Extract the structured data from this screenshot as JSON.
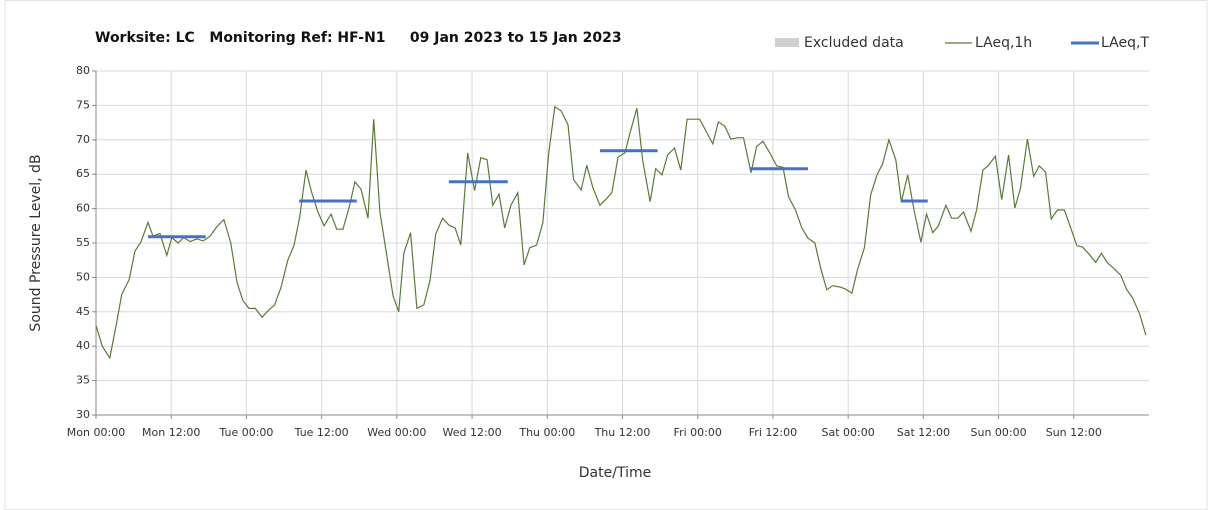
{
  "chart_data": {
    "type": "line",
    "title": "Worksite: LC   Monitoring Ref: HF-N1     09 Jan 2023 to 15 Jan 2023",
    "x_label": "Date/Time",
    "y_label": "Sound Pressure Level, dB",
    "excluded": {
      "name": "Excluded data",
      "color": "#d0d0d0"
    },
    "xlim": [
      0,
      168
    ],
    "xticks": [
      {
        "value": 0,
        "label": "Mon 00:00"
      },
      {
        "value": 12,
        "label": "Mon 12:00"
      },
      {
        "value": 24,
        "label": "Tue 00:00"
      },
      {
        "value": 36,
        "label": "Tue 12:00"
      },
      {
        "value": 48,
        "label": "Wed 00:00"
      },
      {
        "value": 60,
        "label": "Wed 12:00"
      },
      {
        "value": 72,
        "label": "Thu 00:00"
      },
      {
        "value": 84,
        "label": "Thu 12:00"
      },
      {
        "value": 96,
        "label": "Fri 00:00"
      },
      {
        "value": 108,
        "label": "Fri 12:00"
      },
      {
        "value": 120,
        "label": "Sat 00:00"
      },
      {
        "value": 132,
        "label": "Sat 12:00"
      },
      {
        "value": 144,
        "label": "Sun 00:00"
      },
      {
        "value": 156,
        "label": "Sun 12:00"
      }
    ],
    "ylim": [
      30,
      80
    ],
    "yticks": [
      30,
      35,
      40,
      45,
      50,
      55,
      60,
      65,
      70,
      75,
      80
    ],
    "grid": true,
    "series": [
      {
        "name": "LAeq,1h",
        "color": "#5a7a3a",
        "x": [
          0,
          1,
          2.2,
          3.2,
          4.1,
          5.3,
          6.2,
          7.2,
          8.3,
          9.1,
          10.2,
          11.3,
          12.1,
          13.1,
          14,
          15,
          16.1,
          17.1,
          18.2,
          19.3,
          20.4,
          21.5,
          22.5,
          23.4,
          24.4,
          25.4,
          26.5,
          27.4,
          28.5,
          29.5,
          30.6,
          31.6,
          32.5,
          33.5,
          34.4,
          35.4,
          36.4,
          37.5,
          38.4,
          39.4,
          40.4,
          41.3,
          42.3,
          43.4,
          44.3,
          45.3,
          46.3,
          47.4,
          48.3,
          49.1,
          50.2,
          51.2,
          52.3,
          53.3,
          54.2,
          55.3,
          56.3,
          57.3,
          58.2,
          59.3,
          60.4,
          61.4,
          62.4,
          63.3,
          64.3,
          65.2,
          66.2,
          67.3,
          68.3,
          69.2,
          70.3,
          71.3,
          72.2,
          73.2,
          74.2,
          75.3,
          76.2,
          77.4,
          78.3,
          79.3,
          80.4,
          81.3,
          82.3,
          83.3,
          84.4,
          85.2,
          86.3,
          87.2,
          88.4,
          89.3,
          90.3,
          91.2,
          92.3,
          93.3,
          94.3,
          95.4,
          96.3,
          97.3,
          98.4,
          99.3,
          100.3,
          101.3,
          102.4,
          103.3,
          104.5,
          105.4,
          106.4,
          107.5,
          108.6,
          109.6,
          110.5,
          111.6,
          112.6,
          113.6,
          114.7,
          115.6,
          116.6,
          117.5,
          118.7,
          119.6,
          120.6,
          121.5,
          122.6,
          123.6,
          124.6,
          125.5,
          126.5,
          127.6,
          128.5,
          129.5,
          130.5,
          131.6,
          132.5,
          133.5,
          134.4,
          135.6,
          136.5,
          137.5,
          138.4,
          139.6,
          140.5,
          141.5,
          142.4,
          143.5,
          144.5,
          145.6,
          146.6,
          147.5,
          148.6,
          149.6,
          150.5,
          151.5,
          152.4,
          153.4,
          154.5,
          155.5,
          156.5,
          157.4,
          158.5,
          159.5,
          160.4,
          161.4,
          162.5,
          163.5,
          164.4,
          165.4,
          166.5,
          167.5
        ],
        "values": [
          43,
          40,
          38.3,
          43,
          47.5,
          49.7,
          53.8,
          55.2,
          58,
          56,
          56.4,
          53.2,
          55.8,
          55,
          55.8,
          55.2,
          55.6,
          55.3,
          56,
          57.4,
          58.4,
          55,
          49.3,
          46.7,
          45.5,
          45.5,
          44.2,
          45.1,
          46,
          48.5,
          52.5,
          54.7,
          58.8,
          65.6,
          62.4,
          59.5,
          57.5,
          59.2,
          57,
          57,
          60.2,
          63.9,
          62.8,
          58.6,
          73,
          59.5,
          53.7,
          47.3,
          45,
          53.5,
          56.5,
          45.5,
          46,
          49.6,
          56.3,
          58.6,
          57.6,
          57.2,
          54.7,
          68.1,
          62.6,
          67.4,
          67.1,
          60.5,
          62.1,
          57.2,
          60.5,
          62.3,
          51.8,
          54.3,
          54.7,
          58,
          67.8,
          74.8,
          74.2,
          72.2,
          64.2,
          62.7,
          66.3,
          63,
          60.5,
          61.3,
          62.3,
          67.5,
          68.1,
          71,
          74.6,
          67.1,
          61,
          65.8,
          64.9,
          67.8,
          68.8,
          65.6,
          73,
          73,
          73,
          71.3,
          69.4,
          72.6,
          72,
          70.1,
          70.3,
          70.3,
          65.2,
          69,
          69.8,
          68.1,
          66.2,
          66,
          61.7,
          59.8,
          57.2,
          55.7,
          55,
          51.4,
          48.2,
          48.8,
          48.6,
          48.3,
          47.7,
          51.1,
          54.3,
          62,
          64.9,
          66.5,
          70,
          67.1,
          61,
          64.9,
          59.8,
          55.1,
          59.2,
          56.5,
          57.5,
          60.5,
          58.6,
          58.6,
          59.5,
          56.7,
          59.8,
          65.6,
          66.3,
          67.6,
          61.3,
          67.8,
          60.1,
          63,
          70.1,
          64.7,
          66.2,
          65.3,
          58.5,
          59.8,
          59.8,
          57.2,
          54.6,
          54.4,
          53.3,
          52.2,
          53.5,
          52.1,
          51.2,
          50.3,
          48.3,
          47,
          44.7,
          41.6
        ]
      },
      {
        "name": "LAeq,T",
        "color": "#4472c4",
        "x_start": [
          8.3,
          32.4,
          56.3,
          80.4,
          104.3,
          128.4
        ],
        "x_end": [
          17.5,
          41.6,
          65.7,
          89.6,
          113.6,
          132.7
        ],
        "values": [
          55.9,
          61.1,
          63.9,
          68.4,
          65.8,
          61.1
        ]
      }
    ]
  }
}
